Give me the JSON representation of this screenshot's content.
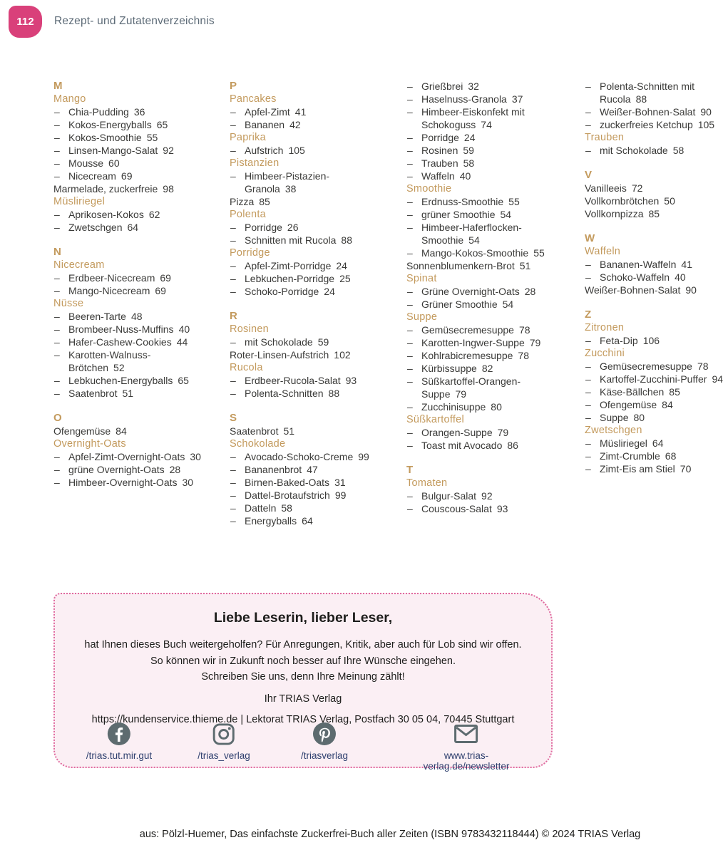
{
  "header": {
    "page_number": "112",
    "title": "Rezept- und Zutatenverzeichnis"
  },
  "index": {
    "dash": "–",
    "columns": [
      {
        "items": [
          {
            "type": "letter",
            "text": "M"
          },
          {
            "type": "heading",
            "text": "Mango"
          },
          {
            "type": "sub",
            "text": "Chia-Pudding",
            "page": "36"
          },
          {
            "type": "sub",
            "text": "Kokos-Energyballs",
            "page": "65"
          },
          {
            "type": "sub",
            "text": "Kokos-Smoothie",
            "page": "55"
          },
          {
            "type": "sub",
            "text": "Linsen-Mango-Salat",
            "page": "92"
          },
          {
            "type": "sub",
            "text": "Mousse",
            "page": "60"
          },
          {
            "type": "sub",
            "text": "Nicecream",
            "page": "69"
          },
          {
            "type": "entry",
            "text": "Marmelade, zuckerfreie",
            "page": "98"
          },
          {
            "type": "heading",
            "text": "Müsliriegel"
          },
          {
            "type": "sub",
            "text": "Aprikosen-Kokos",
            "page": "62"
          },
          {
            "type": "sub",
            "text": "Zwetschgen",
            "page": "64"
          },
          {
            "type": "letter",
            "text": "N"
          },
          {
            "type": "heading",
            "text": "Nicecream"
          },
          {
            "type": "sub",
            "text": "Erdbeer-Nicecream",
            "page": "69"
          },
          {
            "type": "sub",
            "text": "Mango-Nicecream",
            "page": "69"
          },
          {
            "type": "heading",
            "text": "Nüsse"
          },
          {
            "type": "sub",
            "text": "Beeren-Tarte",
            "page": "48"
          },
          {
            "type": "sub",
            "text": "Brombeer-Nuss-Muffins",
            "page": "40"
          },
          {
            "type": "sub",
            "text": "Hafer-Cashew-Cookies",
            "page": "44"
          },
          {
            "type": "sub",
            "text": "Karotten-Walnuss-\nBrötchen",
            "page": "52"
          },
          {
            "type": "sub",
            "text": "Lebkuchen-Energyballs",
            "page": "65"
          },
          {
            "type": "sub",
            "text": "Saatenbrot",
            "page": "51"
          },
          {
            "type": "letter",
            "text": "O"
          },
          {
            "type": "entry",
            "text": "Ofengemüse",
            "page": "84"
          },
          {
            "type": "heading",
            "text": "Overnight-Oats"
          },
          {
            "type": "sub",
            "text": "Apfel-Zimt-Overnight-Oats",
            "page": "30"
          },
          {
            "type": "sub",
            "text": "grüne Overnight-Oats",
            "page": "28"
          },
          {
            "type": "sub",
            "text": "Himbeer-Overnight-Oats",
            "page": "30"
          }
        ]
      },
      {
        "items": [
          {
            "type": "letter",
            "text": "P"
          },
          {
            "type": "heading",
            "text": "Pancakes"
          },
          {
            "type": "sub",
            "text": "Apfel-Zimt",
            "page": "41"
          },
          {
            "type": "sub",
            "text": "Bananen",
            "page": "42"
          },
          {
            "type": "heading",
            "text": "Paprika"
          },
          {
            "type": "sub",
            "text": "Aufstrich",
            "page": "105"
          },
          {
            "type": "heading",
            "text": "Pistanzien"
          },
          {
            "type": "sub",
            "text": "Himbeer-Pistazien-\nGranola",
            "page": "38"
          },
          {
            "type": "entry",
            "text": "Pizza",
            "page": "85"
          },
          {
            "type": "heading",
            "text": "Polenta"
          },
          {
            "type": "sub",
            "text": "Porridge",
            "page": "26"
          },
          {
            "type": "sub",
            "text": "Schnitten mit Rucola",
            "page": "88"
          },
          {
            "type": "heading",
            "text": "Porridge"
          },
          {
            "type": "sub",
            "text": "Apfel-Zimt-Porridge",
            "page": "24"
          },
          {
            "type": "sub",
            "text": "Lebkuchen-Porridge",
            "page": "25"
          },
          {
            "type": "sub",
            "text": "Schoko-Porridge",
            "page": "24"
          },
          {
            "type": "letter",
            "text": "R"
          },
          {
            "type": "heading",
            "text": "Rosinen"
          },
          {
            "type": "sub",
            "text": "mit Schokolade",
            "page": "59"
          },
          {
            "type": "entry",
            "text": "Roter-Linsen-Aufstrich",
            "page": "102"
          },
          {
            "type": "heading",
            "text": "Rucola"
          },
          {
            "type": "sub",
            "text": "Erdbeer-Rucola-Salat",
            "page": "93"
          },
          {
            "type": "sub",
            "text": "Polenta-Schnitten",
            "page": "88"
          },
          {
            "type": "letter",
            "text": "S"
          },
          {
            "type": "entry",
            "text": "Saatenbrot",
            "page": "51"
          },
          {
            "type": "heading",
            "text": "Schokolade"
          },
          {
            "type": "sub",
            "text": "Avocado-Schoko-Creme",
            "page": "99"
          },
          {
            "type": "sub",
            "text": "Bananenbrot",
            "page": "47"
          },
          {
            "type": "sub",
            "text": "Birnen-Baked-Oats",
            "page": "31"
          },
          {
            "type": "sub",
            "text": "Dattel-Brotaufstrich",
            "page": "99"
          },
          {
            "type": "sub",
            "text": "Datteln",
            "page": "58"
          },
          {
            "type": "sub",
            "text": "Energyballs",
            "page": "64"
          }
        ]
      },
      {
        "items": [
          {
            "type": "sub",
            "text": "Grießbrei",
            "page": "32"
          },
          {
            "type": "sub",
            "text": "Haselnuss-Granola",
            "page": "37"
          },
          {
            "type": "sub",
            "text": "Himbeer-Eiskonfekt mit\nSchokoguss",
            "page": "74"
          },
          {
            "type": "sub",
            "text": "Porridge",
            "page": "24"
          },
          {
            "type": "sub",
            "text": "Rosinen",
            "page": "59"
          },
          {
            "type": "sub",
            "text": "Trauben",
            "page": "58"
          },
          {
            "type": "sub",
            "text": "Waffeln",
            "page": "40"
          },
          {
            "type": "heading",
            "text": "Smoothie"
          },
          {
            "type": "sub",
            "text": "Erdnuss-Smoothie",
            "page": "55"
          },
          {
            "type": "sub",
            "text": "grüner Smoothie",
            "page": "54"
          },
          {
            "type": "sub",
            "text": "Himbeer-Haferflocken-\nSmoothie",
            "page": "54"
          },
          {
            "type": "sub",
            "text": "Mango-Kokos-Smoothie",
            "page": "55"
          },
          {
            "type": "entry",
            "text": "Sonnenblumenkern-Brot",
            "page": "51"
          },
          {
            "type": "heading",
            "text": "Spinat"
          },
          {
            "type": "sub",
            "text": "Grüne Overnight-Oats",
            "page": "28"
          },
          {
            "type": "sub",
            "text": "Grüner Smoothie",
            "page": "54"
          },
          {
            "type": "heading",
            "text": "Suppe"
          },
          {
            "type": "sub",
            "text": "Gemüsecremesuppe",
            "page": "78"
          },
          {
            "type": "sub",
            "text": "Karotten-Ingwer-Suppe",
            "page": "79"
          },
          {
            "type": "sub",
            "text": "Kohlrabicremesuppe",
            "page": "78"
          },
          {
            "type": "sub",
            "text": "Kürbissuppe",
            "page": "82"
          },
          {
            "type": "sub",
            "text": "Süßkartoffel-Orangen-\nSuppe",
            "page": "79"
          },
          {
            "type": "sub",
            "text": "Zucchinisuppe",
            "page": "80"
          },
          {
            "type": "heading",
            "text": "Süßkartoffel"
          },
          {
            "type": "sub",
            "text": "Orangen-Suppe",
            "page": "79"
          },
          {
            "type": "sub",
            "text": "Toast mit Avocado",
            "page": "86"
          },
          {
            "type": "letter",
            "text": "T"
          },
          {
            "type": "heading",
            "text": "Tomaten"
          },
          {
            "type": "sub",
            "text": "Bulgur-Salat",
            "page": "92"
          },
          {
            "type": "sub",
            "text": "Couscous-Salat",
            "page": "93"
          }
        ]
      },
      {
        "items": [
          {
            "type": "sub",
            "text": "Polenta-Schnitten mit\nRucola",
            "page": "88"
          },
          {
            "type": "sub",
            "text": "Weißer-Bohnen-Salat",
            "page": "90"
          },
          {
            "type": "sub",
            "text": "zuckerfreies Ketchup",
            "page": "105"
          },
          {
            "type": "heading",
            "text": "Trauben"
          },
          {
            "type": "sub",
            "text": "mit Schokolade",
            "page": "58"
          },
          {
            "type": "letter",
            "text": "V"
          },
          {
            "type": "entry",
            "text": "Vanilleeis",
            "page": "72"
          },
          {
            "type": "entry",
            "text": "Vollkornbrötchen",
            "page": "50"
          },
          {
            "type": "entry",
            "text": "Vollkornpizza",
            "page": "85"
          },
          {
            "type": "letter",
            "text": "W"
          },
          {
            "type": "heading",
            "text": "Waffeln"
          },
          {
            "type": "sub",
            "text": "Bananen-Waffeln",
            "page": "41"
          },
          {
            "type": "sub",
            "text": "Schoko-Waffeln",
            "page": "40"
          },
          {
            "type": "entry",
            "text": "Weißer-Bohnen-Salat",
            "page": "90"
          },
          {
            "type": "letter",
            "text": "Z"
          },
          {
            "type": "heading",
            "text": "Zitronen"
          },
          {
            "type": "sub",
            "text": "Feta-Dip",
            "page": "106"
          },
          {
            "type": "heading",
            "text": "Zucchini"
          },
          {
            "type": "sub",
            "text": "Gemüsecremesuppe",
            "page": "78"
          },
          {
            "type": "sub",
            "text": "Kartoffel-Zucchini-Puffer",
            "page": "94"
          },
          {
            "type": "sub",
            "text": "Käse-Bällchen",
            "page": "85"
          },
          {
            "type": "sub",
            "text": "Ofengemüse",
            "page": "84"
          },
          {
            "type": "sub",
            "text": "Suppe",
            "page": "80"
          },
          {
            "type": "heading",
            "text": "Zwetschgen"
          },
          {
            "type": "sub",
            "text": "Müsliriegel",
            "page": "64"
          },
          {
            "type": "sub",
            "text": "Zimt-Crumble",
            "page": "68"
          },
          {
            "type": "sub",
            "text": "Zimt-Eis am Stiel",
            "page": "70"
          }
        ]
      }
    ]
  },
  "feedback_box": {
    "title": "Liebe Leserin, lieber Leser,",
    "body_lines": [
      "hat Ihnen dieses Buch weitergeholfen? Für Anregungen, Kritik, aber auch für Lob sind wir offen.",
      "So können wir in Zukunft noch besser auf Ihre Wünsche eingehen.",
      "Schreiben Sie uns, denn Ihre Meinung zählt!"
    ],
    "signature": "Ihr TRIAS Verlag",
    "contact_line": "https://kundenservice.thieme.de | Lektorat TRIAS Verlag, Postfach 30 05 04, 70445 Stuttgart",
    "socials": [
      {
        "icon": "facebook-icon",
        "label": "/trias.tut.mir.gut"
      },
      {
        "icon": "instagram-icon",
        "label": "/trias_verlag"
      },
      {
        "icon": "pinterest-icon",
        "label": "/triasverlag"
      },
      {
        "icon": "email-icon",
        "label": "www.trias-verlag.de/newsletter"
      }
    ]
  },
  "footer": {
    "credit": "aus: Pölzl-Huemer, Das einfachste Zuckerfrei-Buch aller Zeiten (ISBN 9783432118444) © 2024 TRIAS Verlag"
  },
  "colors": {
    "accent_pink": "#d9407a",
    "heading_tan": "#c39a5d",
    "text_ink": "#3a3a38",
    "header_gray": "#5d6b77",
    "box_background": "#fbeff4",
    "box_border": "#e0699e",
    "link_navy": "#2e3f6e",
    "icon_slate": "#5d6b6f"
  }
}
